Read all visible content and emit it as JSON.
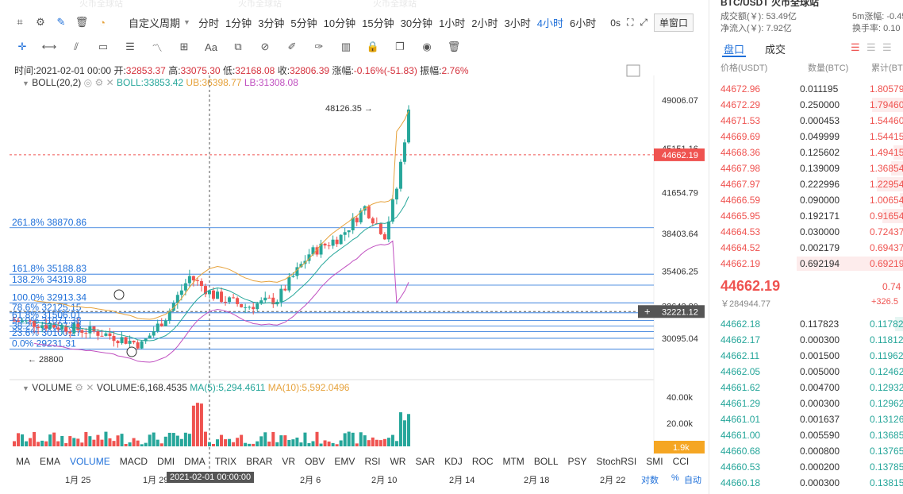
{
  "toolbar": {
    "custom_period": "自定义周期",
    "periods": [
      "分时",
      "1分钟",
      "3分钟",
      "5分钟",
      "10分钟",
      "15分钟",
      "30分钟",
      "1小时",
      "2小时",
      "3小时",
      "4小时",
      "6小时"
    ],
    "active_period": "4小时",
    "os": "0s",
    "window_button": "单窗口"
  },
  "info": {
    "time_label": "时间:",
    "time": "2021-02-01 00:00",
    "open_label": "开:",
    "open": "32853.37",
    "high_label": "高:",
    "high": "33075.30",
    "low_label": "低:",
    "low": "32168.08",
    "close_label": "收:",
    "close": "32806.39",
    "change_label": "涨幅:",
    "change": "-0.16%(-51.83)",
    "amp_label": "振幅:",
    "amp": "2.76%"
  },
  "boll": {
    "name": "BOLL(20,2)",
    "boll": "BOLL:33853.42",
    "ub": "UB:36398.77",
    "lb": "LB:31308.08"
  },
  "price_axis": [
    "49006.07",
    "45151.16",
    "41654.79",
    "38403.64",
    "35406.25",
    "32642.80",
    "30095.04"
  ],
  "current_price_tag": "44662.19",
  "crosshair_price_tag": "32221.12",
  "high_marker": "48126.35",
  "low_marker": "28800",
  "fib_levels": [
    "261.8% 38870.86",
    "161.8% 35188.83",
    "138.2% 34319.88",
    "100.0% 32913.34",
    "78.6% 32125.15",
    "61.8% 31506.01",
    "50.0% 31071.38",
    "38.2% 30637.63",
    "23.6% 30100.27",
    "0.0% 29231.31"
  ],
  "volume": {
    "name": "VOLUME",
    "value": "VOLUME:6,168.4535",
    "ma5": "MA(5):5,294.4611",
    "ma10": "MA(10):5,592.0496"
  },
  "vol_axis": [
    "40.00k",
    "20.00k"
  ],
  "vol_tag": "1.9k",
  "indicators": [
    "MA",
    "EMA",
    "VOLUME",
    "MACD",
    "DMI",
    "DMA",
    "TRIX",
    "BRAR",
    "VR",
    "OBV",
    "EMV",
    "RSI",
    "WR",
    "SAR",
    "KDJ",
    "ROC",
    "MTM",
    "BOLL",
    "PSY",
    "StochRSI",
    "SMI",
    "CCI"
  ],
  "active_indicator": "VOLUME",
  "dates": [
    "1月 25",
    "1月 29",
    "2月 6",
    "2月 10",
    "2月 14",
    "2月 18",
    "2月 22"
  ],
  "date_cursor": "2021-02-01 00:00:00",
  "axis_modes": [
    "对数",
    "%",
    "自动"
  ],
  "colors": {
    "up": "#26a69a",
    "down": "#ef5350",
    "accent": "#1e6fd9"
  },
  "side": {
    "title": "BTC/USDT 火币全球站",
    "turnover": "成交额(￥): 53.49亿",
    "net_inflow": "净流入(￥): 7.92亿",
    "change_5m": "5m涨幅: -0.45",
    "turnover_rate": "换手率: 0.10",
    "tabs": [
      "盘口",
      "成交"
    ],
    "col_price": "价格(USDT)",
    "col_qty": "数量(BTC)",
    "col_total": "累计(BT",
    "asks": [
      [
        "44672.96",
        "0.011195",
        "1.80579"
      ],
      [
        "44672.29",
        "0.250000",
        "1.79460"
      ],
      [
        "44671.53",
        "0.000453",
        "1.54460"
      ],
      [
        "44669.69",
        "0.049999",
        "1.54415"
      ],
      [
        "44668.36",
        "0.125602",
        "1.49415"
      ],
      [
        "44667.98",
        "0.139009",
        "1.36854"
      ],
      [
        "44667.97",
        "0.222996",
        "1.22954"
      ],
      [
        "44666.59",
        "0.090000",
        "1.00654"
      ],
      [
        "44665.95",
        "0.192171",
        "0.91654"
      ],
      [
        "44664.53",
        "0.030000",
        "0.72437"
      ],
      [
        "44664.52",
        "0.002179",
        "0.69437"
      ],
      [
        "44662.19",
        "0.692194",
        "0.69219"
      ]
    ],
    "last_price": "44662.19",
    "last_cny": "￥284944.77",
    "pct": "0.74",
    "pct_abs": "+326.5",
    "bids": [
      [
        "44662.18",
        "0.117823",
        "0.11782"
      ],
      [
        "44662.17",
        "0.000300",
        "0.11812"
      ],
      [
        "44662.11",
        "0.001500",
        "0.11962"
      ],
      [
        "44662.05",
        "0.005000",
        "0.12462"
      ],
      [
        "44661.62",
        "0.004700",
        "0.12932"
      ],
      [
        "44661.29",
        "0.000300",
        "0.12962"
      ],
      [
        "44661.01",
        "0.001637",
        "0.13126"
      ],
      [
        "44661.00",
        "0.005590",
        "0.13685"
      ],
      [
        "44660.68",
        "0.000800",
        "0.13765"
      ],
      [
        "44660.53",
        "0.000200",
        "0.13785"
      ],
      [
        "44660.18",
        "0.000300",
        "0.13815"
      ]
    ]
  }
}
